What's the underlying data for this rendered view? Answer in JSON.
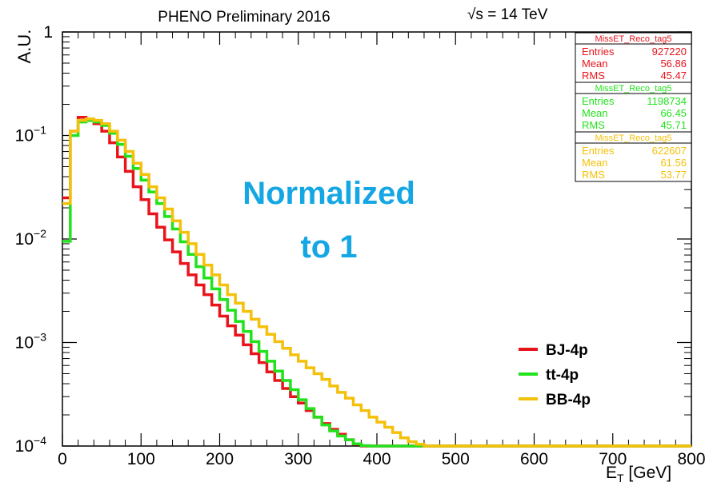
{
  "chart_data": {
    "type": "line",
    "title": "PHENO Preliminary 2016",
    "energy_label": "√s = 14 TeV",
    "ylabel": "A.U.",
    "xlabel_main": "E",
    "xlabel_sub": "T",
    "xlabel_unit": " [GeV]",
    "xlim": [
      0,
      800
    ],
    "ylim": [
      0.0001,
      1
    ],
    "yscale": "log",
    "x_ticks": [
      "0",
      "100",
      "200",
      "300",
      "400",
      "500",
      "600",
      "700",
      "800"
    ],
    "x_tick_values": [
      0,
      100,
      200,
      300,
      400,
      500,
      600,
      700,
      800
    ],
    "y_ticks": [
      {
        "base": "10",
        "exp": "−4",
        "value": 0.0001
      },
      {
        "base": "10",
        "exp": "−3",
        "value": 0.001
      },
      {
        "base": "10",
        "exp": "−2",
        "value": 0.01
      },
      {
        "base": "10",
        "exp": "−1",
        "value": 0.1
      },
      {
        "base": "1",
        "exp": "",
        "value": 1
      }
    ],
    "annotation": {
      "line1": "Normalized",
      "line2": "to 1",
      "color": "#15a7e4"
    },
    "legend_position": "bottom-right",
    "bin_width": 10,
    "series": [
      {
        "name": "BJ-4p",
        "color": "#e8141c",
        "values": [
          0.025,
          0.11,
          0.15,
          0.14,
          0.13,
          0.11,
          0.085,
          0.062,
          0.045,
          0.032,
          0.024,
          0.0175,
          0.013,
          0.0098,
          0.0075,
          0.0058,
          0.0045,
          0.0036,
          0.0029,
          0.0023,
          0.0018,
          0.00145,
          0.00118,
          0.00095,
          0.00078,
          0.00064,
          0.00052,
          0.00043,
          0.00036,
          0.0003,
          0.00026,
          0.00022,
          0.00019,
          0.000165,
          0.000145,
          0.00013,
          0.000115,
          0.000104,
          0.0001,
          0.0001
        ]
      },
      {
        "name": "tt-4p",
        "color": "#22e21c",
        "values": [
          0.0095,
          0.1,
          0.135,
          0.14,
          0.135,
          0.125,
          0.105,
          0.082,
          0.063,
          0.048,
          0.037,
          0.0285,
          0.022,
          0.0165,
          0.0125,
          0.0094,
          0.0071,
          0.0054,
          0.0042,
          0.0033,
          0.0026,
          0.00205,
          0.0016,
          0.00128,
          0.00102,
          0.00082,
          0.00066,
          0.00053,
          0.00043,
          0.00035,
          0.00028,
          0.00023,
          0.00019,
          0.00016,
          0.00014,
          0.000125,
          0.000115,
          0.000105,
          0.000101,
          0.0001
        ]
      },
      {
        "name": "BB-4p",
        "color": "#f4c10a",
        "values": [
          0.022,
          0.11,
          0.14,
          0.145,
          0.14,
          0.13,
          0.11,
          0.09,
          0.07,
          0.054,
          0.042,
          0.032,
          0.025,
          0.0195,
          0.015,
          0.0116,
          0.009,
          0.0071,
          0.0056,
          0.0045,
          0.0036,
          0.0029,
          0.0024,
          0.002,
          0.00168,
          0.00142,
          0.0012,
          0.00102,
          0.00088,
          0.00076,
          0.00066,
          0.00057,
          0.0005,
          0.00044,
          0.00038,
          0.00033,
          0.00029,
          0.00025,
          0.00022,
          0.00019,
          0.00017,
          0.000152,
          0.000135,
          0.00012,
          0.00011,
          0.000104,
          0.0001,
          0.0001
        ]
      }
    ],
    "stat_boxes": [
      {
        "name": "MissET_Reco_tag5",
        "color": "#e8141c",
        "rows": [
          [
            "Entries",
            "927220"
          ],
          [
            "Mean",
            "56.86"
          ],
          [
            "RMS",
            "45.47"
          ]
        ]
      },
      {
        "name": "MissET_Reco_tag5",
        "color": "#22e21c",
        "rows": [
          [
            "Entries",
            "1198734"
          ],
          [
            "Mean",
            "66.45"
          ],
          [
            "RMS",
            "45.71"
          ]
        ]
      },
      {
        "name": "MissET_Reco_tag5",
        "color": "#f4c10a",
        "rows": [
          [
            "Entries",
            "622607"
          ],
          [
            "Mean",
            "61.56"
          ],
          [
            "RMS",
            "53.77"
          ]
        ]
      }
    ]
  }
}
